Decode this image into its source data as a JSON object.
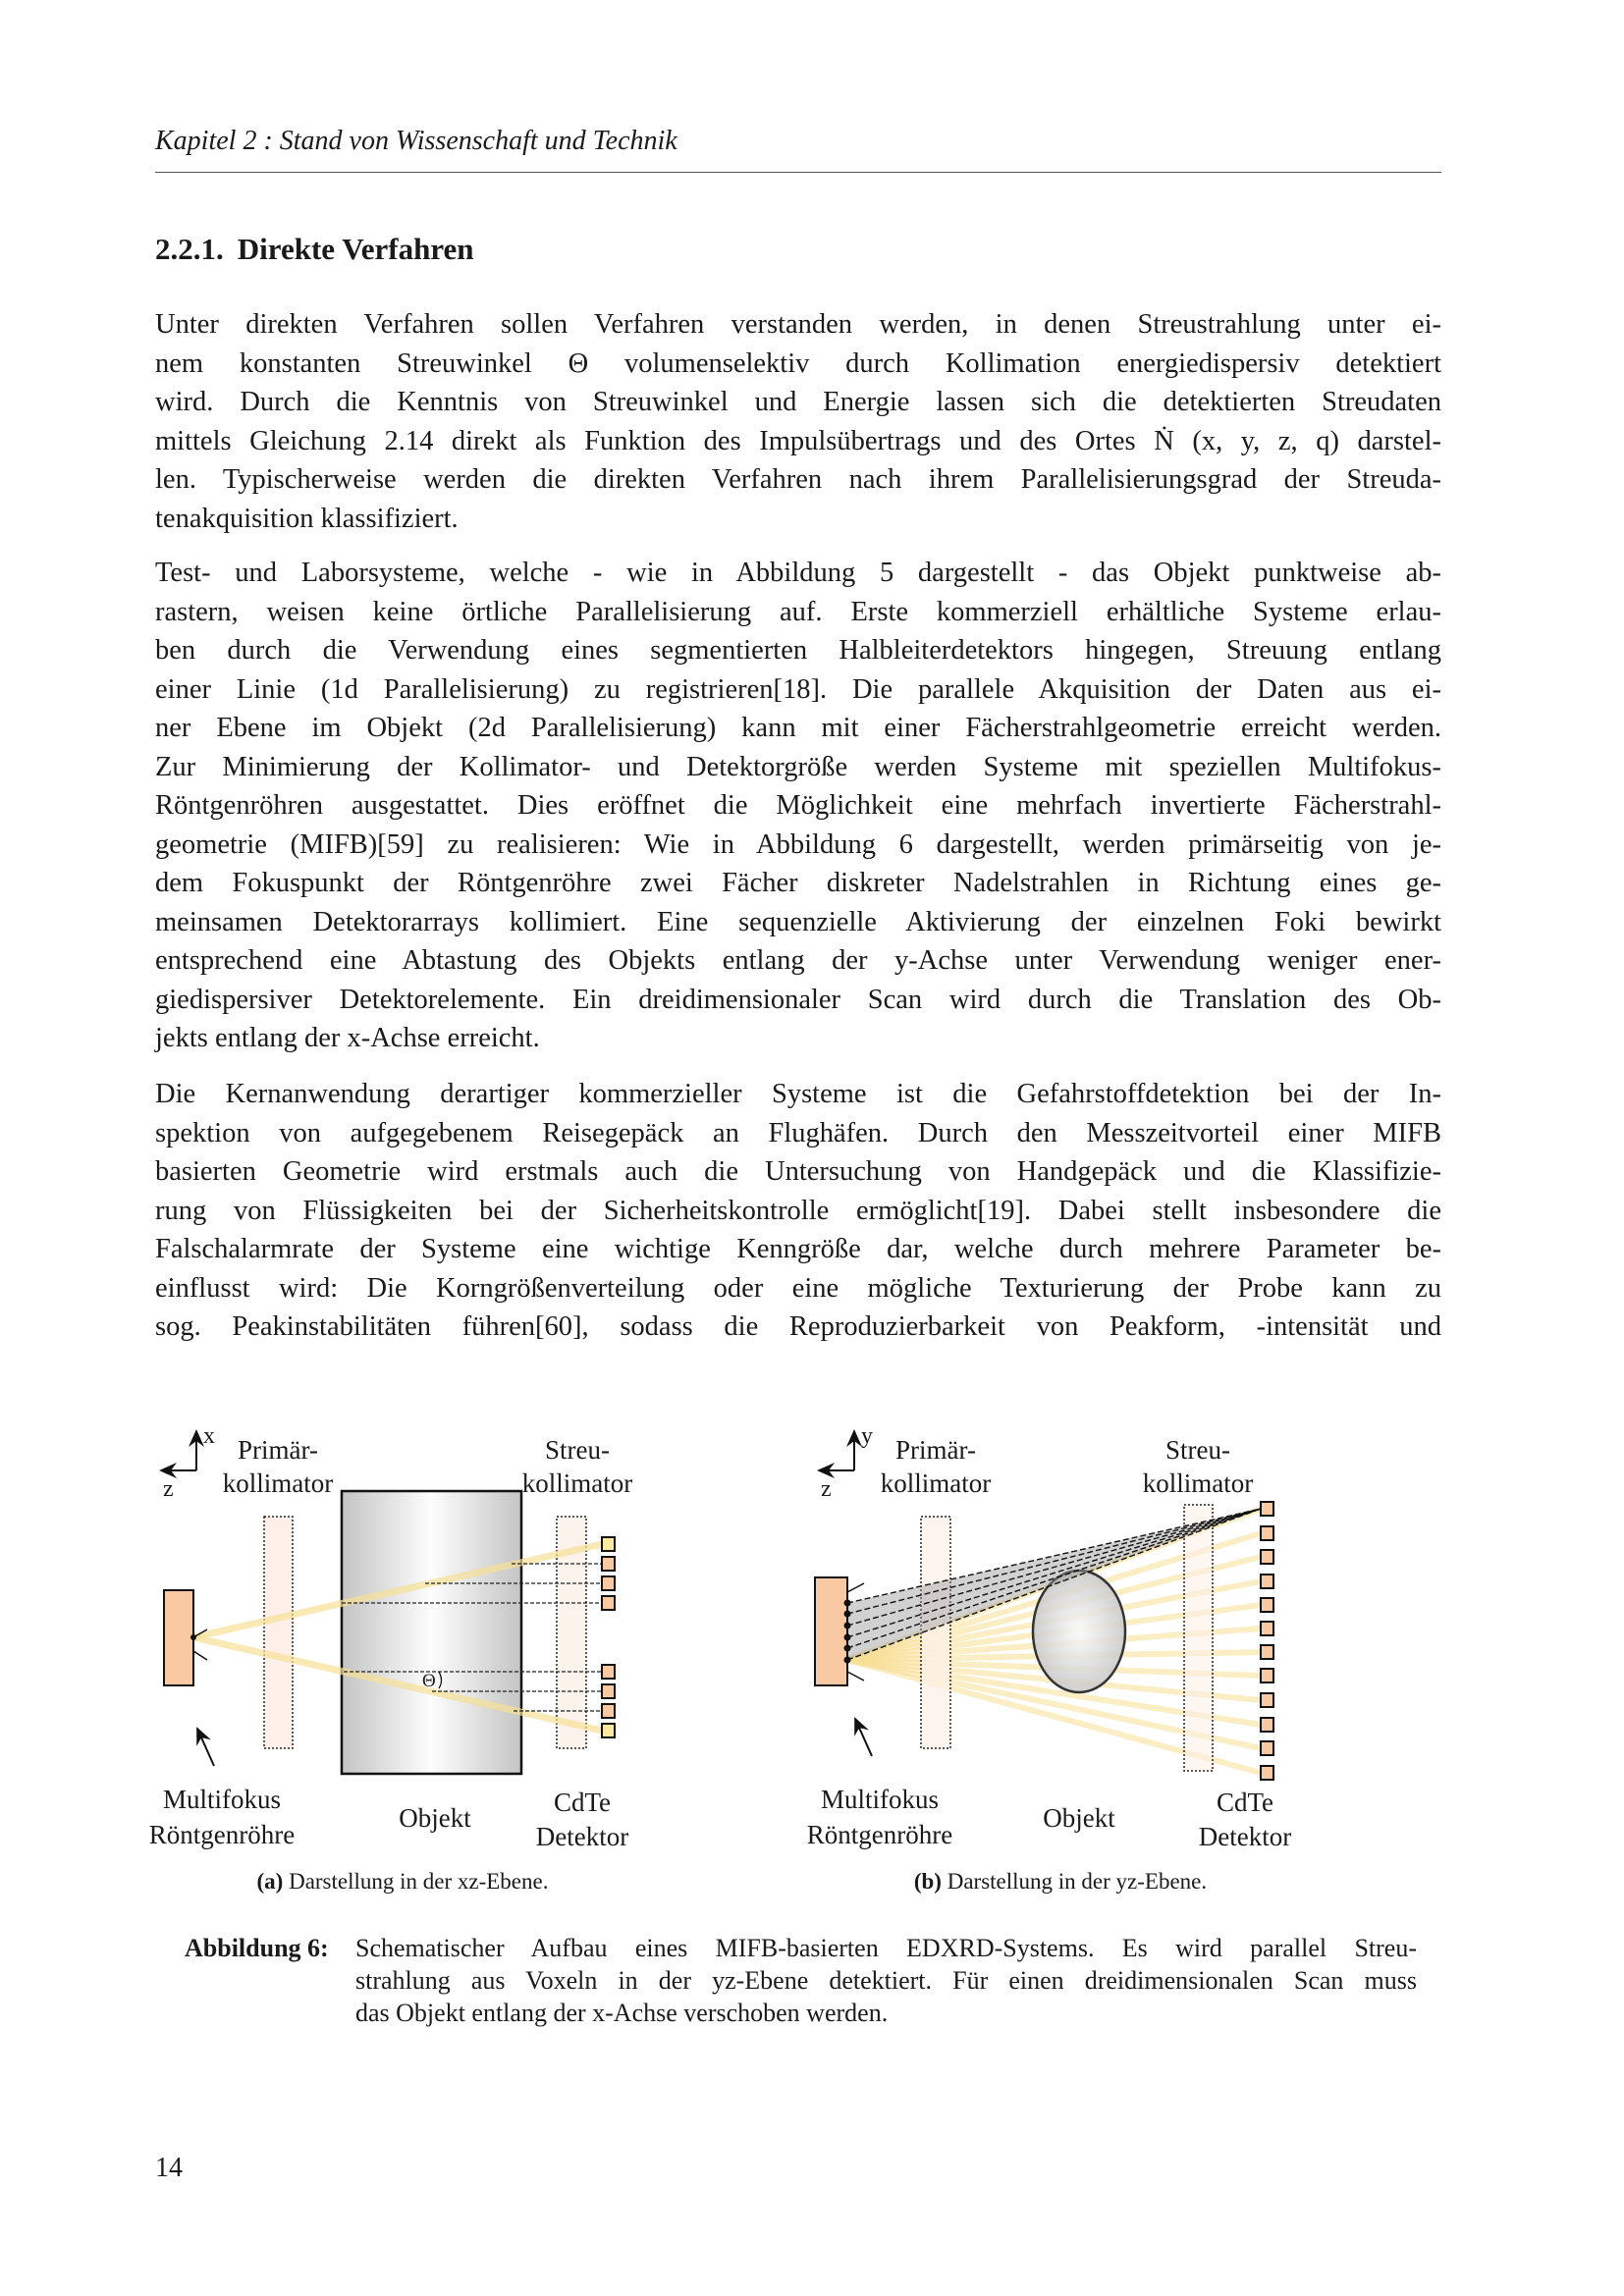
{
  "header": {
    "running_title": "Kapitel 2 : Stand von Wissenschaft und Technik"
  },
  "section": {
    "number": "2.2.1.",
    "title": "Direkte Verfahren"
  },
  "paragraphs": [
    [
      "Unter direkten Verfahren sollen Verfahren verstanden werden, in denen Streustrahlung unter ei-",
      "nem konstanten Streuwinkel Θ volumenselektiv durch Kollimation energiedispersiv detektiert",
      "wird. Durch die Kenntnis von Streuwinkel und Energie lassen sich die detektierten Streudaten",
      "mittels Gleichung 2.14 direkt als Funktion des Impulsübertrags und des Ortes Ṅ (x, y, z, q) darstel-",
      "len. Typischerweise werden die direkten Verfahren nach ihrem Parallelisierungsgrad der Streuda-",
      "tenakquisition klassifiziert."
    ],
    [
      "Test- und Laborsysteme, welche - wie in Abbildung 5 dargestellt - das Objekt punktweise ab-",
      "rastern, weisen keine örtliche Parallelisierung auf. Erste kommerziell erhältliche Systeme erlau-",
      "ben durch die Verwendung eines segmentierten Halbleiterdetektors hingegen, Streuung entlang",
      "einer Linie (1d Parallelisierung) zu registrieren[18]. Die parallele Akquisition der Daten aus ei-",
      "ner Ebene im Objekt (2d Parallelisierung) kann mit einer Fächerstrahlgeometrie erreicht werden.",
      "Zur Minimierung der Kollimator- und Detektorgröße werden Systeme mit speziellen Multifokus-",
      "Röntgenröhren ausgestattet. Dies eröffnet die Möglichkeit eine mehrfach invertierte Fächerstrahl-",
      "geometrie (MIFB)[59] zu realisieren: Wie in Abbildung 6 dargestellt, werden primärseitig von je-",
      "dem Fokuspunkt der Röntgenröhre zwei Fächer diskreter Nadelstrahlen in Richtung eines ge-",
      "meinsamen Detektorarrays kollimiert. Eine sequenzielle Aktivierung der einzelnen Foki bewirkt",
      "entsprechend eine Abtastung des Objekts entlang der y-Achse unter Verwendung weniger ener-",
      "giedispersiver Detektorelemente. Ein dreidimensionaler Scan wird durch die Translation des Ob-",
      "jekts entlang der x-Achse erreicht."
    ],
    [
      "Die Kernanwendung derartiger kommerzieller Systeme ist die Gefahrstoffdetektion bei der In-",
      "spektion von aufgegebenem Reisegepäck an Flughäfen. Durch den Messzeitvorteil einer MIFB",
      "basierten Geometrie wird erstmals auch die Untersuchung von Handgepäck und die Klassifizie-",
      "rung von Flüssigkeiten bei der Sicherheitskontrolle ermöglicht[19]. Dabei stellt insbesondere die",
      "Falschalarmrate der Systeme eine wichtige Kenngröße dar, welche durch mehrere Parameter be-",
      "einflusst wird: Die Korngrößenverteilung oder eine mögliche Texturierung der Probe kann zu",
      "sog. Peakinstabilitäten führen[60], sodass die Reproduzierbarkeit von Peakform, -intensität und"
    ]
  ],
  "figure": {
    "panel_a": {
      "axis_up": "x",
      "axis_left": "z",
      "primary_collimator": [
        "Primär-",
        "kollimator"
      ],
      "scatter_collimator": [
        "Streu-",
        "kollimator"
      ],
      "source": [
        "Multifokus",
        "Röntgenröhre"
      ],
      "object": "Objekt",
      "detector": [
        "CdTe",
        "Detektor"
      ],
      "angle": "Θ",
      "caption_label": "(a)",
      "caption": "Darstellung in der xz-Ebene."
    },
    "panel_b": {
      "axis_up": "y",
      "axis_left": "z",
      "primary_collimator": [
        "Primär-",
        "kollimator"
      ],
      "scatter_collimator": [
        "Streu-",
        "kollimator"
      ],
      "source": [
        "Multifokus",
        "Röntgenröhre"
      ],
      "object": "Objekt",
      "detector": [
        "CdTe",
        "Detektor"
      ],
      "caption_label": "(b)",
      "caption": "Darstellung in der yz-Ebene."
    },
    "colors": {
      "tube": "#f9c9a4",
      "beam": "#f7df94",
      "collimator": "#fdf0e8",
      "detector_edge": "#fbe9a0",
      "detector": "#f9c9a4"
    }
  },
  "caption": {
    "label": "Abbildung 6:",
    "lines": [
      "Schematischer Aufbau eines MIFB-basierten EDXRD-Systems. Es wird parallel Streu-",
      "strahlung aus Voxeln in der yz-Ebene detektiert. Für einen dreidimensionalen Scan muss",
      "das Objekt entlang der x-Achse verschoben werden."
    ]
  },
  "page_number": "14"
}
